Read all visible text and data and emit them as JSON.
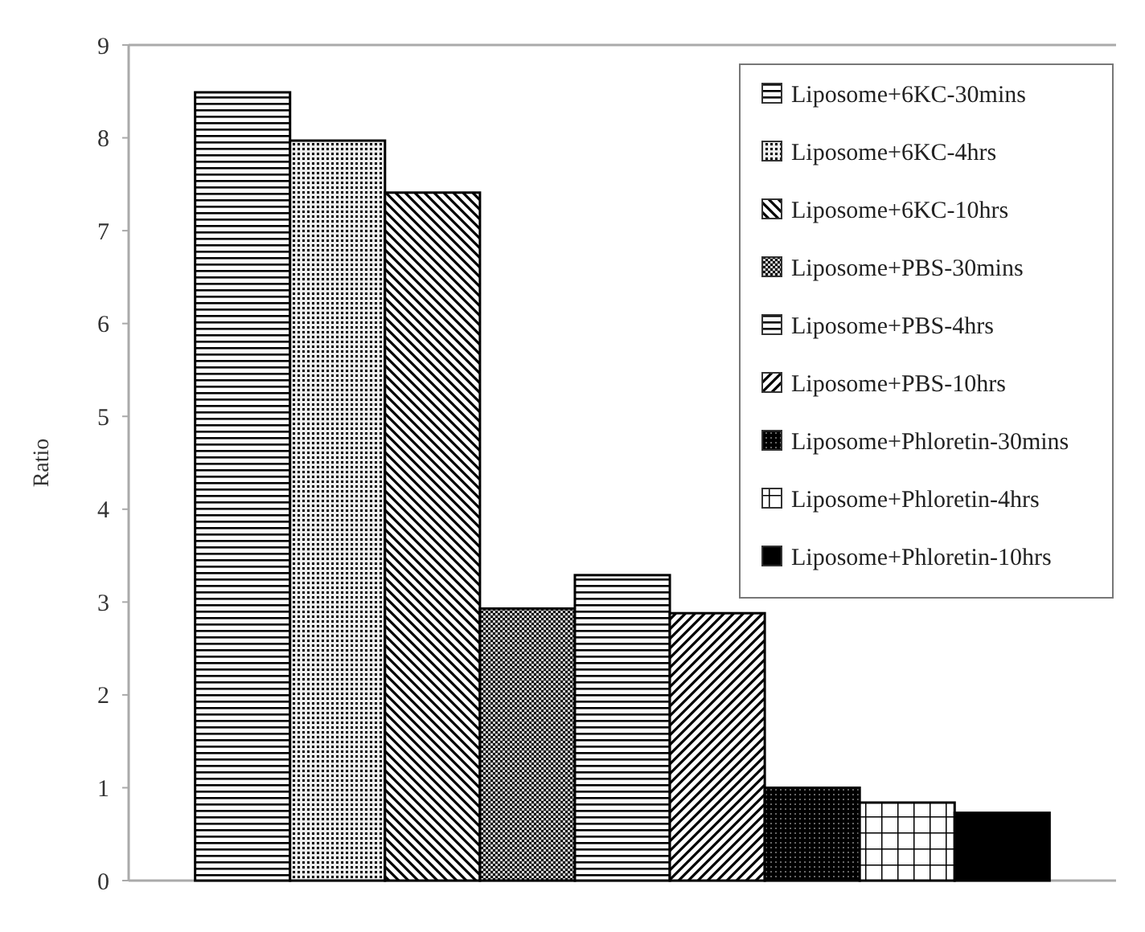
{
  "chart_data": {
    "type": "bar",
    "ylabel": "Ratio",
    "categories": [
      null
    ],
    "ylim": [
      0,
      9
    ],
    "yticks": [
      0,
      1,
      2,
      3,
      4,
      5,
      6,
      7,
      8,
      9
    ],
    "legend": "top right",
    "grid": false,
    "series": [
      {
        "name": "Liposome+6KC-30mins",
        "color": "#000000",
        "values": [
          8.49
        ]
      },
      {
        "name": "Liposome+6KC-4hrs",
        "color": "#000000",
        "values": [
          7.97
        ]
      },
      {
        "name": "Liposome+6KC-10hrs",
        "color": "#000000",
        "values": [
          7.41
        ]
      },
      {
        "name": "Liposome+PBS-30mins",
        "color": "#000000",
        "values": [
          2.93
        ]
      },
      {
        "name": "Liposome+PBS-4hrs",
        "color": "#000000",
        "values": [
          3.29
        ]
      },
      {
        "name": "Liposome+PBS-10hrs",
        "color": "#000000",
        "values": [
          2.88
        ]
      },
      {
        "name": "Liposome+Phloretin-30mins",
        "color": "#000000",
        "values": [
          1.0
        ]
      },
      {
        "name": "Liposome+Phloretin-4hrs",
        "color": "#000000",
        "values": [
          0.84
        ]
      },
      {
        "name": "Liposome+Phloretin-10hrs",
        "color": "#000000",
        "values": [
          0.73
        ]
      }
    ]
  }
}
